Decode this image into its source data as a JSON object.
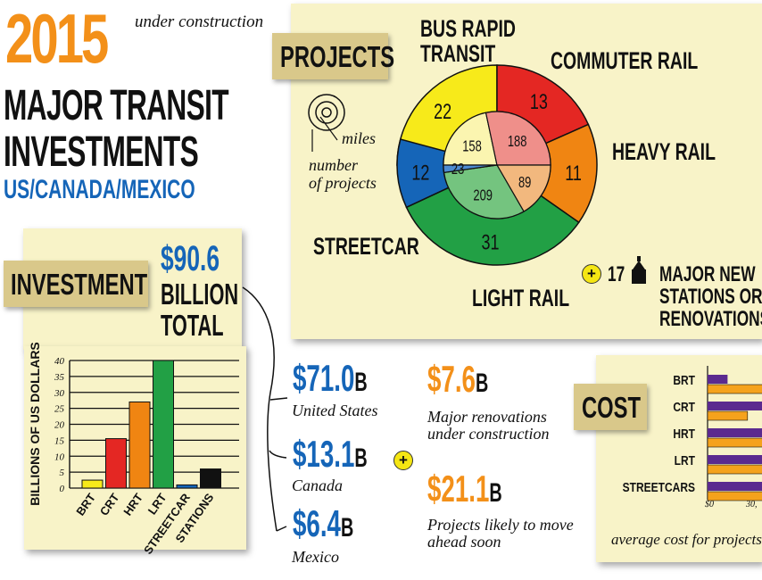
{
  "header": {
    "year": "2015",
    "status": "under construction",
    "title_line1": "MAJOR TRANSIT",
    "title_line2": "INVESTMENTS",
    "subtitle": "US/CANADA/MEXICO"
  },
  "projects": {
    "tag": "PROJECTS",
    "legend_miles": "miles",
    "legend_number": "number",
    "legend_of_projects": "of projects",
    "stations_count": "17",
    "stations_label": [
      "MAJOR NEW",
      "STATIONS OR",
      "RENOVATIONS"
    ],
    "segment_labels": {
      "brt": [
        "BUS RAPID",
        "TRANSIT"
      ],
      "commuter": "COMMUTER RAIL",
      "heavy": "HEAVY RAIL",
      "streetcar": "STREETCAR",
      "light": "LIGHT RAIL"
    }
  },
  "investment": {
    "tag": "INVESTMENT",
    "total_amount": "$90.6",
    "total_unit1": "BILLION",
    "total_unit2": "TOTAL",
    "countries": [
      {
        "amount": "$71.0",
        "unit": "B",
        "name": "United States"
      },
      {
        "amount": "$13.1",
        "unit": "B",
        "name": "Canada"
      },
      {
        "amount": "$6.4",
        "unit": "B",
        "name": "Mexico"
      }
    ],
    "extras": [
      {
        "amount": "$7.6",
        "unit": "B",
        "desc": [
          "Major renovations",
          "under construction"
        ]
      },
      {
        "amount": "$21.1",
        "unit": "B",
        "desc": [
          "Projects likely to move",
          "ahead soon"
        ]
      }
    ]
  },
  "cost": {
    "tag": "COST",
    "caption": "average cost for projects",
    "tick_labels": [
      "$0",
      "30,"
    ]
  },
  "colors": {
    "brt": "#f7ea1a",
    "commuter": "#e42723",
    "heavy": "#f08512",
    "light": "#22a045",
    "streetcar": "#1565b8",
    "stations": "#111111",
    "cost_purple": "#5b2a8f",
    "cost_orange": "#f5a21c"
  },
  "chart_data": [
    {
      "type": "pie",
      "name_ref": "projects",
      "categories": [
        "BUS RAPID TRANSIT",
        "COMMUTER RAIL",
        "HEAVY RAIL",
        "LIGHT RAIL",
        "STREETCAR"
      ],
      "series": [
        {
          "name": "number of projects",
          "values": [
            22,
            13,
            11,
            31,
            12
          ]
        },
        {
          "name": "miles",
          "values": [
            158,
            188,
            89,
            209,
            23
          ]
        }
      ]
    },
    {
      "type": "bar",
      "name_ref": "investment",
      "ylabel": "BILLIONS OF US DOLLARS",
      "ylim": [
        0,
        40
      ],
      "yticks": [
        0,
        5,
        10,
        15,
        20,
        25,
        30,
        35,
        40
      ],
      "categories": [
        "BRT",
        "CRT",
        "HRT",
        "LRT",
        "STREETCAR",
        "STATIONS"
      ],
      "values": [
        2.5,
        15.5,
        27,
        40,
        1,
        6
      ],
      "grid": true
    },
    {
      "type": "bar",
      "orientation": "horizontal",
      "name_ref": "cost",
      "categories": [
        "BRT",
        "CRT",
        "HRT",
        "LRT",
        "STREETCARS"
      ],
      "series": [
        {
          "values": [
            8,
            30,
            33,
            33,
            33
          ]
        },
        {
          "values": [
            22,
            16,
            33,
            33,
            33
          ]
        }
      ]
    }
  ]
}
